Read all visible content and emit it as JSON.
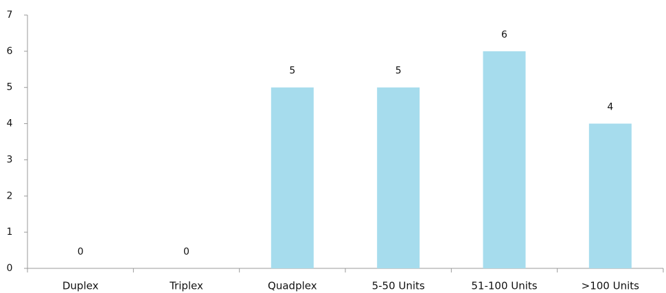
{
  "chart_data": {
    "type": "bar",
    "categories": [
      "Duplex",
      "Triplex",
      "Quadplex",
      "5-50 Units",
      "51-100 Units",
      ">100 Units"
    ],
    "values": [
      0,
      0,
      5,
      5,
      6,
      4
    ],
    "color": "#a6dced",
    "ylim": [
      0,
      7
    ],
    "yticks": [
      0,
      1,
      2,
      3,
      4,
      5,
      6,
      7
    ],
    "grid": false,
    "data_labels": true
  }
}
